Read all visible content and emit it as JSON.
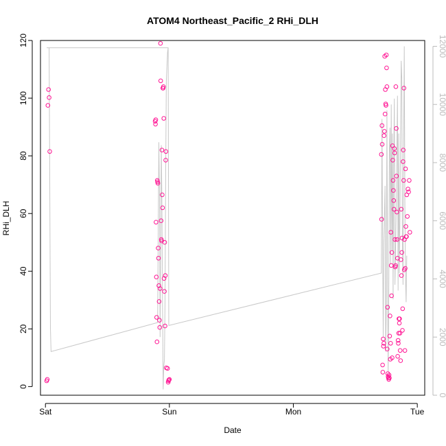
{
  "chart_data": {
    "type": "scatter",
    "title": "ATOM4 Northeast_Pacific_2 RHi_DLH",
    "xlabel": "Date",
    "ylabel": "RHi_DLH",
    "x_ticks": [
      {
        "label": "Sat",
        "day": 0
      },
      {
        "label": "Sun",
        "day": 1
      },
      {
        "label": "Mon",
        "day": 2
      },
      {
        "label": "Tue",
        "day": 3
      }
    ],
    "xlim": [
      -0.04,
      3.06
    ],
    "ylim": [
      -3,
      120
    ],
    "y_ticks": [
      0,
      20,
      40,
      60,
      80,
      100,
      120
    ],
    "y2lim": [
      0,
      12200
    ],
    "y2_ticks": [
      0,
      2000,
      4000,
      6000,
      8000,
      10000,
      12000
    ],
    "colors": {
      "points": "#ff1493",
      "line": "#c8c8c8",
      "right_axis": "#bbbbbb"
    },
    "series": [
      {
        "type": "scatter",
        "axis": "left",
        "points": [
          [
            0.01,
            2.0
          ],
          [
            0.015,
            2.5
          ],
          [
            0.02,
            97.5
          ],
          [
            0.025,
            103.0
          ],
          [
            0.03,
            100.2
          ],
          [
            0.035,
            81.5
          ],
          [
            0.885,
            92.0
          ],
          [
            0.888,
            91.0
          ],
          [
            0.89,
            92.5
          ],
          [
            0.892,
            57.0
          ],
          [
            0.895,
            38.0
          ],
          [
            0.897,
            24.0
          ],
          [
            0.9,
            15.5
          ],
          [
            0.902,
            71.5
          ],
          [
            0.905,
            71.0
          ],
          [
            0.907,
            70.5
          ],
          [
            0.91,
            48.0
          ],
          [
            0.912,
            44.5
          ],
          [
            0.915,
            35.0
          ],
          [
            0.917,
            29.5
          ],
          [
            0.92,
            23.0
          ],
          [
            0.922,
            20.5
          ],
          [
            0.925,
            34.0
          ],
          [
            0.928,
            119.0
          ],
          [
            0.93,
            106.0
          ],
          [
            0.933,
            57.5
          ],
          [
            0.935,
            51.0
          ],
          [
            0.937,
            50.5
          ],
          [
            0.94,
            82.0
          ],
          [
            0.942,
            66.5
          ],
          [
            0.945,
            62.0
          ],
          [
            0.947,
            103.5
          ],
          [
            0.95,
            103.5
          ],
          [
            0.952,
            104.0
          ],
          [
            0.955,
            93.0
          ],
          [
            0.957,
            37.5
          ],
          [
            0.96,
            33.0
          ],
          [
            0.962,
            50.0
          ],
          [
            0.965,
            21.0
          ],
          [
            0.967,
            38.5
          ],
          [
            0.97,
            78.5
          ],
          [
            0.972,
            81.5
          ],
          [
            0.975,
            6.5
          ],
          [
            0.985,
            6.3
          ],
          [
            0.99,
            1.5
          ],
          [
            0.993,
            2.0
          ],
          [
            0.996,
            2.3
          ],
          [
            1.0,
            2.5
          ],
          [
            2.71,
            80.5
          ],
          [
            2.712,
            58.0
          ],
          [
            2.715,
            90.5
          ],
          [
            2.717,
            84.0
          ],
          [
            2.72,
            7.5
          ],
          [
            2.722,
            5.0
          ],
          [
            2.725,
            16.5
          ],
          [
            2.727,
            14.0
          ],
          [
            2.73,
            15.0
          ],
          [
            2.732,
            87.0
          ],
          [
            2.735,
            88.5
          ],
          [
            2.737,
            114.5
          ],
          [
            2.74,
            94.5
          ],
          [
            2.742,
            103.0
          ],
          [
            2.745,
            98.0
          ],
          [
            2.747,
            97.5
          ],
          [
            2.75,
            115.0
          ],
          [
            2.752,
            110.5
          ],
          [
            2.755,
            104.0
          ],
          [
            2.757,
            13.0
          ],
          [
            2.76,
            27.5
          ],
          [
            2.762,
            4.5
          ],
          [
            2.765,
            3.5
          ],
          [
            2.767,
            3.0
          ],
          [
            2.77,
            2.5
          ],
          [
            2.772,
            4.0
          ],
          [
            2.775,
            3.0
          ],
          [
            2.777,
            17.5
          ],
          [
            2.78,
            24.5
          ],
          [
            2.782,
            9.5
          ],
          [
            2.785,
            15.0
          ],
          [
            2.787,
            53.5
          ],
          [
            2.79,
            42.0
          ],
          [
            2.792,
            31.5
          ],
          [
            2.795,
            46.5
          ],
          [
            2.797,
            10.0
          ],
          [
            2.8,
            83.5
          ],
          [
            2.802,
            78.5
          ],
          [
            2.805,
            71.5
          ],
          [
            2.807,
            68.0
          ],
          [
            2.81,
            64.5
          ],
          [
            2.812,
            61.5
          ],
          [
            2.815,
            82.5
          ],
          [
            2.817,
            81.0
          ],
          [
            2.82,
            51.0
          ],
          [
            2.822,
            41.5
          ],
          [
            2.825,
            42.0
          ],
          [
            2.827,
            104.0
          ],
          [
            2.83,
            89.5
          ],
          [
            2.832,
            73.0
          ],
          [
            2.835,
            60.5
          ],
          [
            2.837,
            51.0
          ],
          [
            2.84,
            44.5
          ],
          [
            2.842,
            10.5
          ],
          [
            2.845,
            16.0
          ],
          [
            2.847,
            15.0
          ],
          [
            2.85,
            18.5
          ],
          [
            2.852,
            23.5
          ],
          [
            2.855,
            22.0
          ],
          [
            2.857,
            23.5
          ],
          [
            2.86,
            18.5
          ],
          [
            2.862,
            12.5
          ],
          [
            2.865,
            9.0
          ],
          [
            2.868,
            44.0
          ],
          [
            2.87,
            61.5
          ],
          [
            2.872,
            38.5
          ],
          [
            2.875,
            46.5
          ],
          [
            2.877,
            51.5
          ],
          [
            2.88,
            19.5
          ],
          [
            2.882,
            27.0
          ],
          [
            2.885,
            78.0
          ],
          [
            2.887,
            82.0
          ],
          [
            2.89,
            71.5
          ],
          [
            2.892,
            103.5
          ],
          [
            2.895,
            40.5
          ],
          [
            2.897,
            51.0
          ],
          [
            2.9,
            12.5
          ],
          [
            2.902,
            41.0
          ],
          [
            2.905,
            75.5
          ],
          [
            2.908,
            55.5
          ],
          [
            2.91,
            52.0
          ],
          [
            2.913,
            52.0
          ],
          [
            2.915,
            66.5
          ],
          [
            2.92,
            59.0
          ],
          [
            2.925,
            68.5
          ],
          [
            2.93,
            67.5
          ],
          [
            2.935,
            71.5
          ],
          [
            2.94,
            53.5
          ]
        ]
      },
      {
        "type": "line",
        "axis": "right",
        "points": [
          [
            0.01,
            11950
          ],
          [
            0.03,
            11950
          ],
          [
            0.04,
            2300
          ],
          [
            0.045,
            1500
          ],
          [
            0.905,
            2500
          ],
          [
            0.915,
            8700
          ],
          [
            0.92,
            7000
          ],
          [
            0.925,
            2000
          ],
          [
            0.93,
            5000
          ],
          [
            0.935,
            8600
          ],
          [
            0.94,
            6500
          ],
          [
            0.945,
            3000
          ],
          [
            0.95,
            200
          ],
          [
            0.955,
            1000
          ],
          [
            0.96,
            1200
          ],
          [
            0.965,
            3200
          ],
          [
            0.97,
            7800
          ],
          [
            0.975,
            10800
          ],
          [
            0.985,
            11800
          ],
          [
            0.99,
            11950
          ],
          [
            0.03,
            11950
          ],
          [
            0.99,
            11950
          ],
          [
            0.995,
            2400
          ],
          [
            2.71,
            4200
          ],
          [
            2.715,
            9500
          ],
          [
            2.72,
            5500
          ],
          [
            2.725,
            2000
          ],
          [
            2.73,
            5200
          ],
          [
            2.74,
            7200
          ],
          [
            2.745,
            1500
          ],
          [
            2.75,
            3000
          ],
          [
            2.755,
            9800
          ],
          [
            2.76,
            4000
          ],
          [
            2.765,
            800
          ],
          [
            2.77,
            3500
          ],
          [
            2.775,
            8500
          ],
          [
            2.78,
            9200
          ],
          [
            2.785,
            4500
          ],
          [
            2.79,
            10000
          ],
          [
            2.795,
            5000
          ],
          [
            2.8,
            9000
          ],
          [
            2.805,
            3300
          ],
          [
            2.81,
            7800
          ],
          [
            2.815,
            10200
          ],
          [
            2.82,
            3800
          ],
          [
            2.83,
            6500
          ],
          [
            2.84,
            10300
          ],
          [
            2.845,
            3600
          ],
          [
            2.85,
            9000
          ],
          [
            2.855,
            4200
          ],
          [
            2.86,
            6200
          ],
          [
            2.87,
            11500
          ],
          [
            2.875,
            10900
          ],
          [
            2.88,
            5200
          ],
          [
            2.885,
            3800
          ],
          [
            2.89,
            8800
          ],
          [
            2.895,
            12000
          ],
          [
            2.9,
            6500
          ],
          [
            2.905,
            4000
          ],
          [
            2.91,
            3200
          ],
          [
            2.915,
            4800
          ]
        ]
      }
    ]
  }
}
